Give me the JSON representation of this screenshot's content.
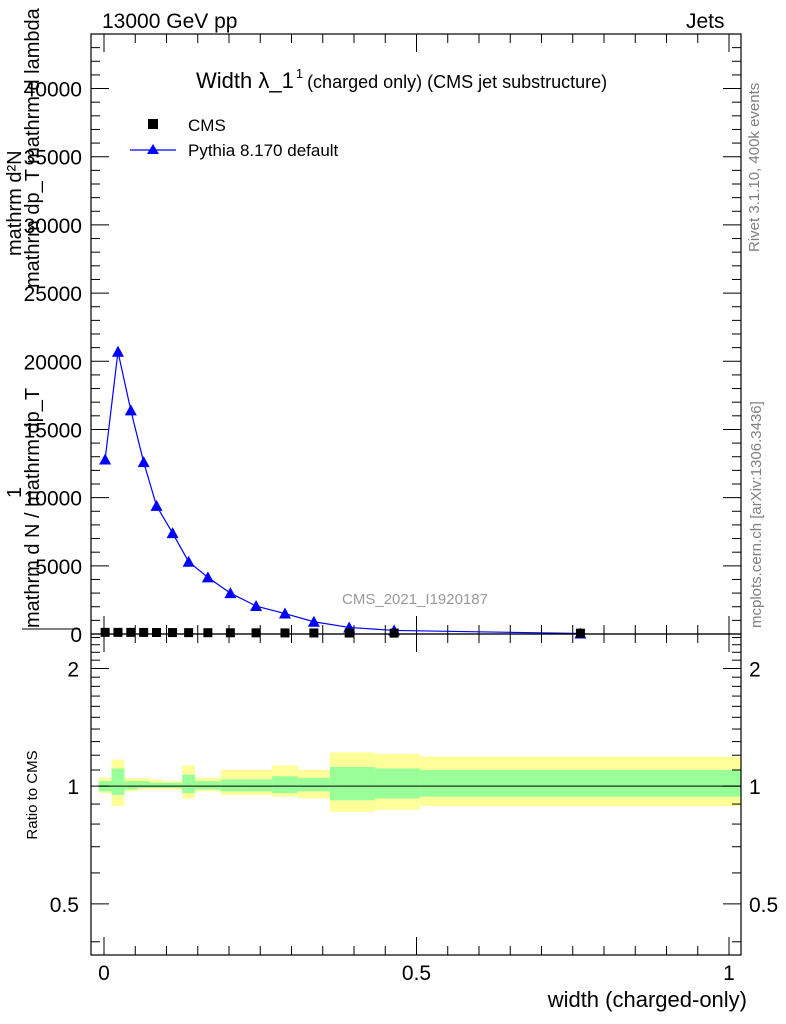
{
  "header": {
    "left": "13000 GeV pp",
    "right": "Jets"
  },
  "side_labels": {
    "rivet": "Rivet 3.1.10,  400k events",
    "mcplots": "mcplots.cern.ch [arXiv:1306.3436]"
  },
  "chart_data": [
    {
      "type": "line",
      "title": "Width λ_1",
      "title_superscript": "1",
      "subtitle": "(charged only) (CMS jet substructure)",
      "watermark": "CMS_2021_I1920187",
      "ylabel_lines": [
        "mathrm d²N",
        "mathrm dp_T mathrm d lambda",
        "1",
        "mathrm d N / mathrm dp_T"
      ],
      "ylim": [
        0,
        44000
      ],
      "xlim": [
        -0.012,
        1.0
      ],
      "yticks": [
        0,
        5000,
        10000,
        15000,
        20000,
        25000,
        30000,
        35000,
        40000
      ],
      "ytick_labels": [
        "0",
        "5000",
        "10000",
        "15000",
        "20000",
        "25000",
        "30000",
        "35000",
        "40000"
      ],
      "legend_position": "top-left",
      "series": [
        {
          "name": "CMS",
          "marker": "square",
          "color": "#000000",
          "x": [
            0.01,
            0.03,
            0.05,
            0.07,
            0.09,
            0.115,
            0.14,
            0.17,
            0.205,
            0.245,
            0.29,
            0.335,
            0.39,
            0.46,
            0.75
          ],
          "y": [
            120,
            120,
            120,
            115,
            110,
            105,
            100,
            95,
            90,
            85,
            80,
            75,
            70,
            65,
            60
          ]
        },
        {
          "name": "Pythia 8.170 default",
          "marker": "triangle",
          "color": "#0000ff",
          "x": [
            0.01,
            0.03,
            0.05,
            0.07,
            0.09,
            0.115,
            0.14,
            0.17,
            0.205,
            0.245,
            0.29,
            0.335,
            0.39,
            0.46,
            0.75
          ],
          "y": [
            12800,
            20700,
            16400,
            12600,
            9400,
            7400,
            5300,
            4150,
            3000,
            2050,
            1500,
            900,
            480,
            260,
            40
          ]
        }
      ]
    },
    {
      "type": "area",
      "ylabel": "Ratio to CMS",
      "xlabel": "width (charged-only)",
      "ylim": [
        0.37,
        2.45
      ],
      "log_scale_y": true,
      "xlim": [
        -0.012,
        1.0
      ],
      "xticks": [
        0,
        0.5,
        1
      ],
      "xtick_labels": [
        "0",
        "0.5",
        "1"
      ],
      "yticks": [
        0.5,
        1,
        2
      ],
      "ytick_labels": [
        "0.5",
        "1",
        "2"
      ],
      "bin_edges": [
        0.0,
        0.02,
        0.04,
        0.06,
        0.08,
        0.1,
        0.13,
        0.15,
        0.19,
        0.22,
        0.27,
        0.31,
        0.36,
        0.43,
        0.5,
        1.0
      ],
      "green_band": [
        [
          0.97,
          1.03
        ],
        [
          0.95,
          1.11
        ],
        [
          0.98,
          1.03
        ],
        [
          0.99,
          1.03
        ],
        [
          0.99,
          1.02
        ],
        [
          0.99,
          1.02
        ],
        [
          0.96,
          1.07
        ],
        [
          0.98,
          1.03
        ],
        [
          0.97,
          1.04
        ],
        [
          0.97,
          1.04
        ],
        [
          0.96,
          1.06
        ],
        [
          0.97,
          1.05
        ],
        [
          0.92,
          1.12
        ],
        [
          0.93,
          1.11
        ],
        [
          0.94,
          1.1
        ],
        [
          0.94,
          1.1
        ]
      ],
      "yellow_band": [
        [
          0.96,
          1.05
        ],
        [
          0.89,
          1.17
        ],
        [
          0.97,
          1.05
        ],
        [
          0.98,
          1.05
        ],
        [
          0.98,
          1.04
        ],
        [
          0.98,
          1.03
        ],
        [
          0.93,
          1.13
        ],
        [
          0.97,
          1.05
        ],
        [
          0.95,
          1.1
        ],
        [
          0.95,
          1.1
        ],
        [
          0.94,
          1.13
        ],
        [
          0.93,
          1.1
        ],
        [
          0.86,
          1.22
        ],
        [
          0.87,
          1.21
        ],
        [
          0.89,
          1.19
        ],
        [
          0.89,
          1.19
        ]
      ],
      "band_colors": {
        "green": "#99ff99",
        "yellow": "#ffff99"
      },
      "reference_line": 1
    }
  ]
}
